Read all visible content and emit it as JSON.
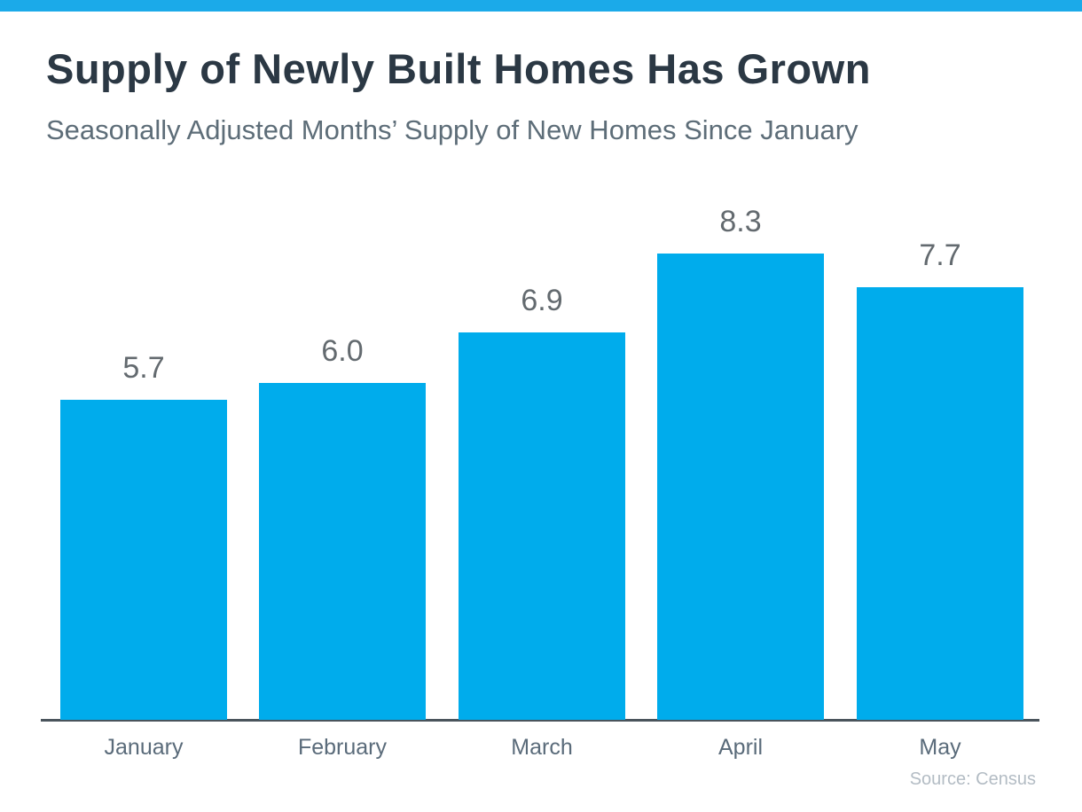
{
  "page": {
    "title": "Supply of Newly Built Homes Has Grown",
    "subtitle": "Seasonally Adjusted Months’ Supply of New Homes Since January",
    "source": "Source: Census"
  },
  "colors": {
    "accent_bar": "#1BAAE9",
    "bar_fill": "#00ACEC",
    "title_text": "#2B3844",
    "subtitle_text": "#5D6D78",
    "value_label": "#636A6F",
    "month_label": "#5A6B7A",
    "axis_line": "#4A545C",
    "source_text": "#B3BCC4"
  },
  "chart_data": {
    "type": "bar",
    "title": "Supply of Newly Built Homes Has Grown",
    "subtitle": "Seasonally Adjusted Months’ Supply of New Homes Since January",
    "categories": [
      "January",
      "February",
      "March",
      "April",
      "May"
    ],
    "values": [
      5.7,
      6.0,
      6.9,
      8.3,
      7.7
    ],
    "value_labels": [
      "5.7",
      "6.0",
      "6.9",
      "8.3",
      "7.7"
    ],
    "xlabel": "",
    "ylabel": "",
    "ylim": [
      0,
      9
    ],
    "grid": false,
    "legend": false,
    "show_value_labels": true,
    "source": "Source: Census"
  }
}
